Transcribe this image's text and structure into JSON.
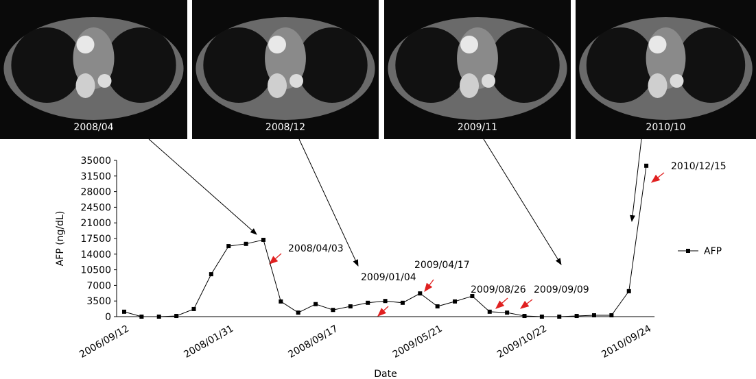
{
  "images": [
    {
      "label": "2008/04"
    },
    {
      "label": "2008/12"
    },
    {
      "label": "2009/11"
    },
    {
      "label": "2010/10"
    }
  ],
  "chart_data": {
    "type": "line",
    "ylabel": "AFP (ng/dL)",
    "xlabel": "Date",
    "categories": [
      "2006/09/12",
      null,
      null,
      null,
      null,
      null,
      "2008/01/31",
      null,
      null,
      null,
      null,
      null,
      "2008/09/17",
      null,
      null,
      null,
      null,
      null,
      "2009/05/21",
      null,
      null,
      null,
      null,
      null,
      "2009/10/22",
      null,
      null,
      null,
      null,
      null,
      "2010/09/24"
    ],
    "series": [
      {
        "name": "AFP",
        "color": "#000000",
        "values": [
          1100,
          0,
          0,
          150,
          1700,
          9500,
          15800,
          16300,
          17200,
          3400,
          900,
          2800,
          1500,
          2300,
          3100,
          3500,
          3100,
          5200,
          2300,
          3400,
          4600,
          1100,
          900,
          150,
          0,
          0,
          150,
          300,
          300,
          5700,
          33800
        ]
      }
    ],
    "ylim": [
      0,
      35000
    ],
    "yticks": [
      0,
      3500,
      7000,
      10500,
      14000,
      17500,
      21000,
      24500,
      28000,
      31500,
      35000
    ],
    "legend": "right",
    "annotations": [
      "2008/04/03",
      "2009/01/04",
      "2009/04/17",
      "2009/08/26",
      "2009/09/09",
      "2010/12/15"
    ]
  }
}
